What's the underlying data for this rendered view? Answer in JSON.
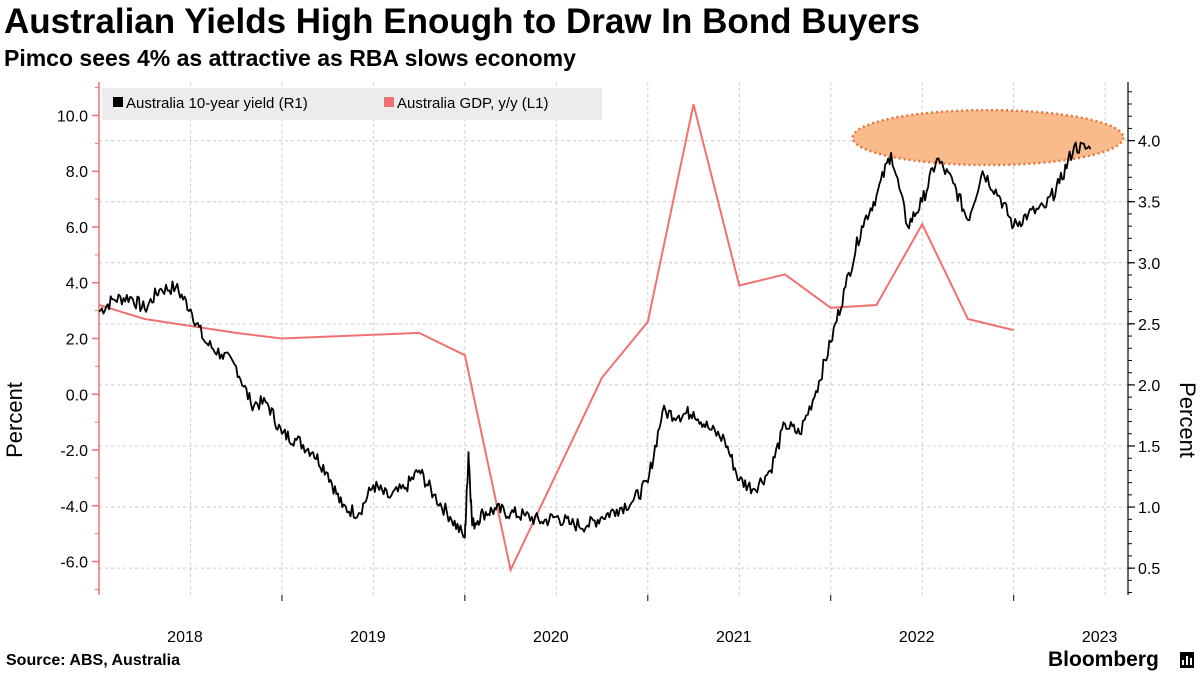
{
  "header": {
    "title": "Australian Yields High Enough to Draw In Bond Buyers",
    "subtitle": "Pimco sees 4% as attractive as RBA slows economy"
  },
  "footer": {
    "source": "Source: ABS, Australia",
    "brand": "Bloomberg"
  },
  "colors": {
    "yield_line": "#000000",
    "gdp_line": "#f07171",
    "highlight_fill": "#f9b47f",
    "highlight_stroke": "#e8743a",
    "grid": "#cccccc",
    "left_axis": "#f07171"
  },
  "chart_data": {
    "type": "line",
    "left_axis": {
      "label": "Percent",
      "ticks": [
        "10.0",
        "8.0",
        "6.0",
        "4.0",
        "2.0",
        "0.0",
        "-2.0",
        "-4.0",
        "-6.0"
      ],
      "range": [
        -7.2,
        11.2
      ]
    },
    "right_axis": {
      "label": "Percent",
      "ticks": [
        "4.0",
        "3.5",
        "3.0",
        "2.5",
        "2.0",
        "1.5",
        "1.0",
        "0.5"
      ],
      "range": [
        0.28,
        4.48
      ]
    },
    "x_axis": {
      "ticks": [
        "2018",
        "2019",
        "2020",
        "2021",
        "2022",
        "2023"
      ],
      "range": [
        2017.75,
        2023.375
      ]
    },
    "legend": [
      {
        "label": "Australia 10-year yield (R1)",
        "series": "yield"
      },
      {
        "label": "Australia GDP, y/y (L1)",
        "series": "gdp"
      }
    ],
    "series": [
      {
        "name": "Australia GDP, y/y (L1)",
        "axis": "left",
        "points": [
          [
            2017.75,
            3.2
          ],
          [
            2018.0,
            2.7
          ],
          [
            2018.5,
            2.2
          ],
          [
            2018.75,
            2.0
          ],
          [
            2019.5,
            2.2
          ],
          [
            2019.75,
            1.4
          ],
          [
            2020.0,
            -6.3
          ],
          [
            2020.5,
            0.6
          ],
          [
            2020.75,
            2.6
          ],
          [
            2021.0,
            10.4
          ],
          [
            2021.25,
            3.9
          ],
          [
            2021.5,
            4.3
          ],
          [
            2021.75,
            3.1
          ],
          [
            2022.0,
            3.2
          ],
          [
            2022.25,
            6.1
          ],
          [
            2022.5,
            2.7
          ],
          [
            2022.75,
            2.3
          ]
        ]
      },
      {
        "name": "Australia 10-year yield (R1)",
        "axis": "right",
        "points": [
          [
            2017.75,
            2.6
          ],
          [
            2017.83,
            2.7
          ],
          [
            2017.92,
            2.72
          ],
          [
            2018.0,
            2.62
          ],
          [
            2018.08,
            2.78
          ],
          [
            2018.17,
            2.8
          ],
          [
            2018.25,
            2.62
          ],
          [
            2018.33,
            2.35
          ],
          [
            2018.42,
            2.25
          ],
          [
            2018.5,
            2.15
          ],
          [
            2018.58,
            1.85
          ],
          [
            2018.67,
            1.85
          ],
          [
            2018.75,
            1.6
          ],
          [
            2018.83,
            1.55
          ],
          [
            2018.92,
            1.45
          ],
          [
            2019.0,
            1.28
          ],
          [
            2019.08,
            1.0
          ],
          [
            2019.17,
            0.95
          ],
          [
            2019.25,
            1.18
          ],
          [
            2019.33,
            1.08
          ],
          [
            2019.42,
            1.15
          ],
          [
            2019.5,
            1.3
          ],
          [
            2019.58,
            1.1
          ],
          [
            2019.67,
            0.92
          ],
          [
            2019.75,
            0.75
          ],
          [
            2019.77,
            1.45
          ],
          [
            2019.79,
            0.85
          ],
          [
            2019.85,
            0.95
          ],
          [
            2019.92,
            0.98
          ],
          [
            2020.0,
            0.95
          ],
          [
            2020.08,
            0.93
          ],
          [
            2020.17,
            0.88
          ],
          [
            2020.25,
            0.92
          ],
          [
            2020.33,
            0.86
          ],
          [
            2020.42,
            0.85
          ],
          [
            2020.5,
            0.92
          ],
          [
            2020.58,
            0.98
          ],
          [
            2020.67,
            1.05
          ],
          [
            2020.75,
            1.2
          ],
          [
            2020.83,
            1.78
          ],
          [
            2020.92,
            1.75
          ],
          [
            2021.0,
            1.78
          ],
          [
            2021.08,
            1.65
          ],
          [
            2021.17,
            1.55
          ],
          [
            2021.25,
            1.22
          ],
          [
            2021.33,
            1.15
          ],
          [
            2021.42,
            1.3
          ],
          [
            2021.5,
            1.68
          ],
          [
            2021.58,
            1.6
          ],
          [
            2021.67,
            1.95
          ],
          [
            2021.75,
            2.35
          ],
          [
            2021.83,
            2.8
          ],
          [
            2021.92,
            3.3
          ],
          [
            2022.0,
            3.55
          ],
          [
            2022.08,
            3.9
          ],
          [
            2022.17,
            3.3
          ],
          [
            2022.25,
            3.5
          ],
          [
            2022.33,
            3.85
          ],
          [
            2022.42,
            3.65
          ],
          [
            2022.5,
            3.35
          ],
          [
            2022.58,
            3.75
          ],
          [
            2022.67,
            3.55
          ],
          [
            2022.75,
            3.3
          ],
          [
            2022.83,
            3.4
          ],
          [
            2022.92,
            3.45
          ],
          [
            2023.0,
            3.65
          ],
          [
            2023.08,
            3.95
          ],
          [
            2023.17,
            3.93
          ]
        ]
      }
    ],
    "annotations": [
      {
        "type": "ellipse",
        "label": "highlight",
        "x_range": [
          2021.87,
          2023.35
        ],
        "y_range_right": [
          3.8,
          4.25
        ]
      }
    ]
  }
}
